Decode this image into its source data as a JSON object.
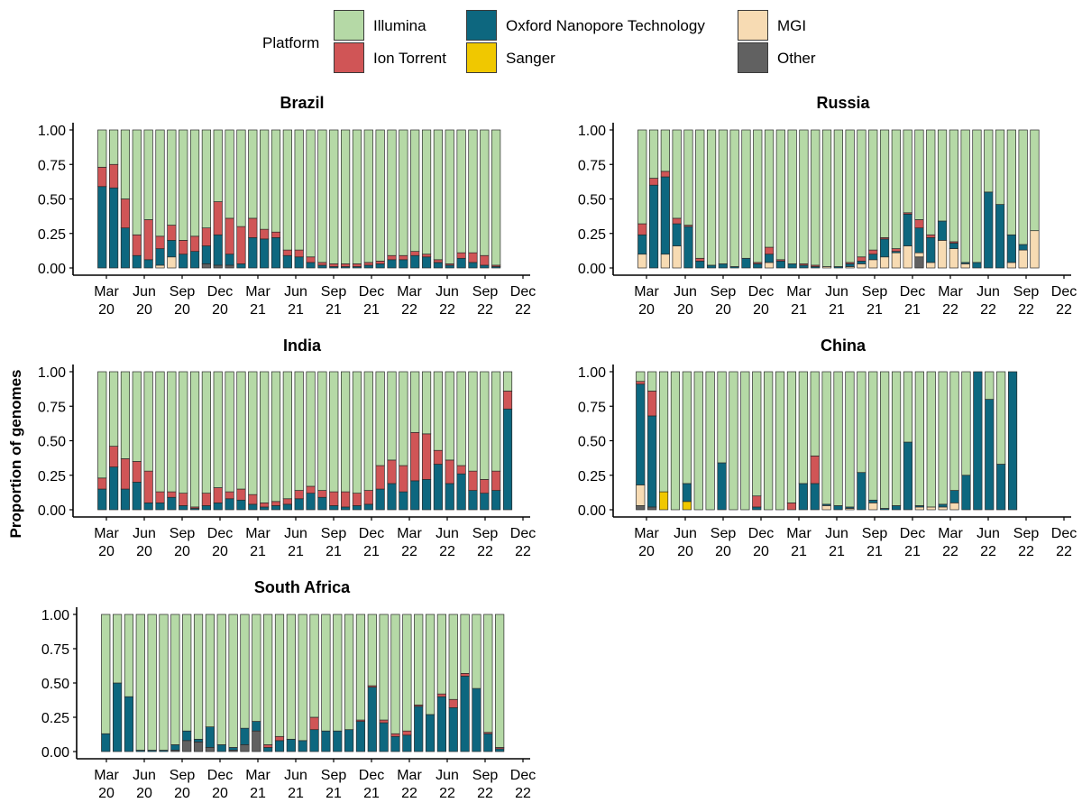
{
  "y_axis_title": "Proportion of genomes",
  "legend": {
    "title": "Platform",
    "items": [
      {
        "label": "Illumina",
        "color": "#b5d9a6"
      },
      {
        "label": "Ion Torrent",
        "color": "#d05556"
      },
      {
        "label": "Oxford Nanopore Technology",
        "color": "#0d677f"
      },
      {
        "label": "Sanger",
        "color": "#f0c800"
      },
      {
        "label": "MGI",
        "color": "#f7dbb3"
      },
      {
        "label": "Other",
        "color": "#616161"
      }
    ]
  },
  "chart_data": [
    {
      "type": "bar",
      "stacked": true,
      "title": "Brazil",
      "ylabel": "Proportion of genomes",
      "ylim": [
        0,
        1
      ],
      "yticks": [
        "0.00",
        "0.25",
        "0.50",
        "0.75",
        "1.00"
      ],
      "xticks": [
        [
          "Mar",
          "20"
        ],
        [
          "Jun",
          "20"
        ],
        [
          "Sep",
          "20"
        ],
        [
          "Dec",
          "20"
        ],
        [
          "Mar",
          "21"
        ],
        [
          "Jun",
          "21"
        ],
        [
          "Sep",
          "21"
        ],
        [
          "Dec",
          "21"
        ],
        [
          "Mar",
          "22"
        ],
        [
          "Jun",
          "22"
        ],
        [
          "Sep",
          "22"
        ],
        [
          "Dec",
          "22"
        ]
      ],
      "start_month_index": 0,
      "months": [
        {
          "ont": 0.59,
          "ion": 0.14
        },
        {
          "ont": 0.58,
          "ion": 0.17
        },
        {
          "ont": 0.29,
          "ion": 0.21
        },
        {
          "ont": 0.09,
          "ion": 0.15
        },
        {
          "ont": 0.06,
          "ion": 0.29
        },
        {
          "ont": 0.12,
          "ion": 0.09,
          "mgi": 0.02
        },
        {
          "ont": 0.12,
          "ion": 0.11,
          "mgi": 0.08
        },
        {
          "ont": 0.1,
          "ion": 0.1
        },
        {
          "ont": 0.12,
          "ion": 0.11
        },
        {
          "ont": 0.13,
          "ion": 0.13,
          "other": 0.03
        },
        {
          "ont": 0.22,
          "ion": 0.24,
          "other": 0.02
        },
        {
          "ont": 0.08,
          "ion": 0.26,
          "other": 0.02
        },
        {
          "ont": 0.03,
          "ion": 0.27
        },
        {
          "ont": 0.22,
          "ion": 0.14
        },
        {
          "ont": 0.21,
          "ion": 0.07
        },
        {
          "ont": 0.22,
          "ion": 0.04
        },
        {
          "ont": 0.09,
          "ion": 0.04
        },
        {
          "ont": 0.08,
          "ion": 0.05
        },
        {
          "ont": 0.04,
          "ion": 0.04
        },
        {
          "ont": 0.02,
          "ion": 0.02
        },
        {
          "ont": 0.01,
          "ion": 0.02
        },
        {
          "ont": 0.01,
          "ion": 0.02
        },
        {
          "ont": 0.01,
          "ion": 0.02
        },
        {
          "ont": 0.02,
          "ion": 0.02
        },
        {
          "ont": 0.03,
          "ion": 0.02
        },
        {
          "ont": 0.06,
          "ion": 0.03
        },
        {
          "ont": 0.06,
          "ion": 0.03
        },
        {
          "ont": 0.09,
          "ion": 0.03
        },
        {
          "ont": 0.08,
          "ion": 0.02
        },
        {
          "ont": 0.04,
          "ion": 0.02
        },
        {
          "ont": 0.02,
          "ion": 0.01
        },
        {
          "ont": 0.07,
          "ion": 0.04
        },
        {
          "ont": 0.04,
          "ion": 0.07
        },
        {
          "ont": 0.02,
          "ion": 0.07
        },
        {
          "ont": 0.01,
          "ion": 0.01
        }
      ]
    },
    {
      "type": "bar",
      "stacked": true,
      "title": "Russia",
      "ylabel": "Proportion of genomes",
      "ylim": [
        0,
        1
      ],
      "yticks": [
        "0.00",
        "0.25",
        "0.50",
        "0.75",
        "1.00"
      ],
      "xticks": [
        [
          "Mar",
          "20"
        ],
        [
          "Jun",
          "20"
        ],
        [
          "Sep",
          "20"
        ],
        [
          "Dec",
          "20"
        ],
        [
          "Mar",
          "21"
        ],
        [
          "Jun",
          "21"
        ],
        [
          "Sep",
          "21"
        ],
        [
          "Dec",
          "21"
        ],
        [
          "Mar",
          "22"
        ],
        [
          "Jun",
          "22"
        ],
        [
          "Sep",
          "22"
        ],
        [
          "Dec",
          "22"
        ]
      ],
      "start_month_index": 0,
      "months": [
        {
          "mgi": 0.1,
          "ont": 0.14,
          "ion": 0.08
        },
        {
          "ont": 0.6,
          "ion": 0.05
        },
        {
          "mgi": 0.1,
          "ont": 0.56,
          "ion": 0.04
        },
        {
          "mgi": 0.16,
          "ont": 0.16,
          "ion": 0.04
        },
        {
          "ont": 0.3,
          "ion": 0.01
        },
        {
          "ont": 0.05,
          "ion": 0.02
        },
        {
          "ont": 0.02
        },
        {
          "ont": 0.03
        },
        {
          "ont": 0.01
        },
        {
          "ont": 0.07
        },
        {
          "ont": 0.03,
          "ion": 0.01
        },
        {
          "mgi": 0.04,
          "ont": 0.06,
          "ion": 0.05
        },
        {
          "ont": 0.05,
          "ion": 0.01
        },
        {
          "ont": 0.03
        },
        {
          "ont": 0.02,
          "ion": 0.01
        },
        {
          "ont": 0.01,
          "ion": 0.01
        },
        {
          "mgi": 0.01
        },
        {
          "ont": 0.01
        },
        {
          "mgi": 0.01,
          "ont": 0.02,
          "ion": 0.01
        },
        {
          "mgi": 0.03,
          "ont": 0.02,
          "ion": 0.03
        },
        {
          "mgi": 0.06,
          "ont": 0.04,
          "ion": 0.03
        },
        {
          "mgi": 0.08,
          "ont": 0.13,
          "ion": 0.01
        },
        {
          "mgi": 0.11,
          "ont": 0.01,
          "ion": 0.02
        },
        {
          "mgi": 0.16,
          "ont": 0.23,
          "ion": 0.01
        },
        {
          "other": 0.08,
          "mgi": 0.03,
          "ont": 0.18,
          "ion": 0.06
        },
        {
          "mgi": 0.04,
          "ont": 0.18,
          "ion": 0.02
        },
        {
          "mgi": 0.2,
          "ont": 0.14
        },
        {
          "mgi": 0.14,
          "ont": 0.04,
          "ion": 0.01
        },
        {
          "mgi": 0.03,
          "ont": 0.01
        },
        {
          "ont": 0.04
        },
        {
          "ont": 0.55
        },
        {
          "ont": 0.46
        },
        {
          "mgi": 0.04,
          "ont": 0.2
        },
        {
          "mgi": 0.13,
          "ont": 0.04
        },
        {
          "mgi": 0.27
        }
      ]
    },
    {
      "type": "bar",
      "stacked": true,
      "title": "India",
      "ylabel": "Proportion of genomes",
      "ylim": [
        0,
        1
      ],
      "yticks": [
        "0.00",
        "0.25",
        "0.50",
        "0.75",
        "1.00"
      ],
      "xticks": [
        [
          "Mar",
          "20"
        ],
        [
          "Jun",
          "20"
        ],
        [
          "Sep",
          "20"
        ],
        [
          "Dec",
          "20"
        ],
        [
          "Mar",
          "21"
        ],
        [
          "Jun",
          "21"
        ],
        [
          "Sep",
          "21"
        ],
        [
          "Dec",
          "21"
        ],
        [
          "Mar",
          "22"
        ],
        [
          "Jun",
          "22"
        ],
        [
          "Sep",
          "22"
        ],
        [
          "Dec",
          "22"
        ]
      ],
      "start_month_index": 0,
      "months": [
        {
          "ont": 0.15,
          "ion": 0.08
        },
        {
          "ont": 0.31,
          "ion": 0.15
        },
        {
          "ont": 0.15,
          "ion": 0.22
        },
        {
          "ont": 0.2,
          "ion": 0.15
        },
        {
          "ont": 0.05,
          "ion": 0.23
        },
        {
          "ont": 0.05,
          "ion": 0.08
        },
        {
          "ont": 0.09,
          "ion": 0.04
        },
        {
          "ont": 0.03,
          "ion": 0.09
        },
        {
          "ont": 0.01,
          "ion": 0.01
        },
        {
          "ont": 0.03,
          "ion": 0.09
        },
        {
          "ont": 0.05,
          "ion": 0.11
        },
        {
          "ont": 0.08,
          "ion": 0.05
        },
        {
          "ont": 0.07,
          "ion": 0.08
        },
        {
          "ont": 0.04,
          "ion": 0.07
        },
        {
          "ont": 0.02,
          "ion": 0.03
        },
        {
          "ont": 0.03,
          "ion": 0.03
        },
        {
          "ont": 0.04,
          "ion": 0.04
        },
        {
          "ont": 0.08,
          "ion": 0.06
        },
        {
          "ont": 0.12,
          "ion": 0.05
        },
        {
          "ont": 0.09,
          "ion": 0.05
        },
        {
          "ont": 0.03,
          "ion": 0.1
        },
        {
          "ont": 0.02,
          "ion": 0.11
        },
        {
          "ont": 0.03,
          "ion": 0.09
        },
        {
          "ont": 0.04,
          "ion": 0.1
        },
        {
          "ont": 0.15,
          "ion": 0.17
        },
        {
          "ont": 0.19,
          "ion": 0.17
        },
        {
          "ont": 0.13,
          "ion": 0.19
        },
        {
          "ont": 0.21,
          "ion": 0.35
        },
        {
          "ont": 0.22,
          "ion": 0.33
        },
        {
          "ont": 0.33,
          "ion": 0.1
        },
        {
          "ont": 0.19,
          "ion": 0.17
        },
        {
          "ont": 0.26,
          "ion": 0.06
        },
        {
          "ont": 0.14,
          "ion": 0.14
        },
        {
          "ont": 0.12,
          "ion": 0.1
        },
        {
          "ont": 0.14,
          "ion": 0.14
        },
        {
          "ont": 0.73,
          "ion": 0.13
        }
      ]
    },
    {
      "type": "bar",
      "stacked": true,
      "title": "China",
      "ylabel": "Proportion of genomes",
      "ylim": [
        0,
        1
      ],
      "yticks": [
        "0.00",
        "0.25",
        "0.50",
        "0.75",
        "1.00"
      ],
      "xticks": [
        [
          "Mar",
          "20"
        ],
        [
          "Jun",
          "20"
        ],
        [
          "Sep",
          "20"
        ],
        [
          "Dec",
          "20"
        ],
        [
          "Mar",
          "21"
        ],
        [
          "Jun",
          "21"
        ],
        [
          "Sep",
          "21"
        ],
        [
          "Dec",
          "21"
        ],
        [
          "Mar",
          "22"
        ],
        [
          "Jun",
          "22"
        ],
        [
          "Sep",
          "22"
        ],
        [
          "Dec",
          "22"
        ]
      ],
      "start_month_index": 0,
      "months": [
        {
          "other": 0.03,
          "mgi": 0.15,
          "ont": 0.73,
          "ion": 0.02
        },
        {
          "other": 0.02,
          "ont": 0.66,
          "ion": 0.18
        },
        {
          "sanger": 0.13
        },
        {},
        {
          "sanger": 0.06,
          "ont": 0.13
        },
        {},
        {},
        {
          "ont": 0.34
        },
        {},
        {},
        {
          "ont": 0.02,
          "ion": 0.08
        },
        {},
        {},
        {
          "ion": 0.05
        },
        {
          "ont": 0.19
        },
        {
          "ont": 0.19,
          "ion": 0.2
        },
        {
          "mgi": 0.03,
          "ont": 0.01
        },
        {
          "ont": 0.03
        },
        {
          "mgi": 0.01,
          "ont": 0.01
        },
        {
          "ont": 0.27
        },
        {
          "mgi": 0.05,
          "ont": 0.02
        },
        {
          "ont": 0.01
        },
        {
          "ont": 0.03
        },
        {
          "ont": 0.49
        },
        {
          "mgi": 0.02,
          "ont": 0.01
        },
        {
          "mgi": 0.02
        },
        {
          "mgi": 0.02,
          "ont": 0.02
        },
        {
          "mgi": 0.05,
          "ont": 0.09
        },
        {
          "ont": 0.25
        },
        {
          "ont": 1.0
        },
        {
          "ont": 0.8
        },
        {
          "ont": 0.33
        },
        {
          "ont": 1.0
        }
      ]
    },
    {
      "type": "bar",
      "stacked": true,
      "title": "South Africa",
      "ylabel": "Proportion of genomes",
      "ylim": [
        0,
        1
      ],
      "yticks": [
        "0.00",
        "0.25",
        "0.50",
        "0.75",
        "1.00"
      ],
      "xticks": [
        [
          "Mar",
          "20"
        ],
        [
          "Jun",
          "20"
        ],
        [
          "Sep",
          "20"
        ],
        [
          "Dec",
          "20"
        ],
        [
          "Mar",
          "21"
        ],
        [
          "Jun",
          "21"
        ],
        [
          "Sep",
          "21"
        ],
        [
          "Dec",
          "21"
        ],
        [
          "Mar",
          "22"
        ],
        [
          "Jun",
          "22"
        ],
        [
          "Sep",
          "22"
        ],
        [
          "Dec",
          "22"
        ]
      ],
      "start_month_index": 0,
      "months": [
        {
          "ont": 0.13
        },
        {
          "ont": 0.5
        },
        {
          "ont": 0.4
        },
        {
          "ont": 0.01
        },
        {
          "ont": 0.01
        },
        {
          "ont": 0.01
        },
        {
          "ont": 0.04,
          "other": 0.01
        },
        {
          "other": 0.08,
          "ont": 0.07
        },
        {
          "other": 0.07,
          "ont": 0.02
        },
        {
          "other": 0.03,
          "ont": 0.15
        },
        {
          "ont": 0.05
        },
        {
          "ont": 0.02,
          "other": 0.01
        },
        {
          "other": 0.05,
          "ont": 0.12
        },
        {
          "other": 0.15,
          "ont": 0.07
        },
        {
          "ont": 0.03,
          "ion": 0.02
        },
        {
          "ont": 0.08,
          "ion": 0.03
        },
        {
          "ont": 0.09
        },
        {
          "ont": 0.08
        },
        {
          "ont": 0.16,
          "ion": 0.09
        },
        {
          "ont": 0.15
        },
        {
          "ont": 0.15
        },
        {
          "ont": 0.16
        },
        {
          "ont": 0.22,
          "ion": 0.01
        },
        {
          "ont": 0.47,
          "ion": 0.01
        },
        {
          "ont": 0.21,
          "ion": 0.02
        },
        {
          "ont": 0.11,
          "ion": 0.02
        },
        {
          "ont": 0.12,
          "ion": 0.03
        },
        {
          "ont": 0.33,
          "ion": 0.01
        },
        {
          "ont": 0.27
        },
        {
          "ont": 0.4,
          "ion": 0.02
        },
        {
          "ont": 0.32,
          "ion": 0.06
        },
        {
          "ont": 0.55,
          "ion": 0.02
        },
        {
          "ont": 0.46
        },
        {
          "ont": 0.13,
          "ion": 0.01
        },
        {
          "ont": 0.02,
          "ion": 0.01
        }
      ]
    }
  ]
}
